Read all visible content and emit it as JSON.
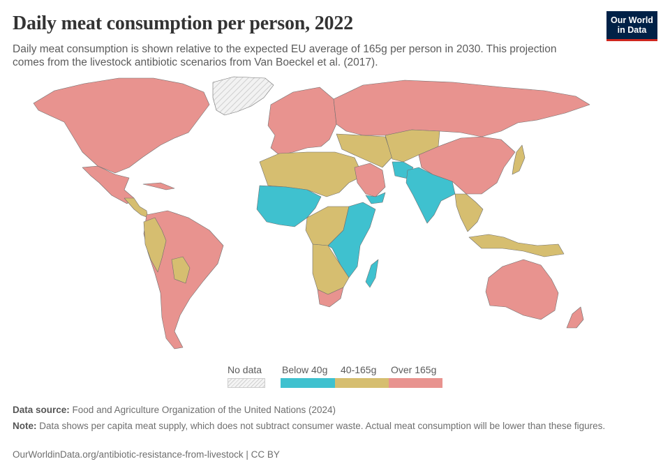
{
  "header": {
    "title": "Daily meat consumption per person, 2022",
    "subtitle": "Daily meat consumption is shown relative to the expected EU average of 165g per person in 2030. This projection comes from the livestock antibiotic scenarios from Van Boeckel et al. (2017)."
  },
  "logo": {
    "line1": "Our World",
    "line2": "in Data",
    "bg_color": "#002147",
    "accent_color": "#ce261e"
  },
  "colors": {
    "below_40g": "#3fc1cf",
    "between_40_165g": "#d6be70",
    "over_165g": "#e8938f",
    "no_data": "#e4e4e4",
    "ocean": "#ffffff",
    "border": "#6f6f6f"
  },
  "legend": {
    "no_data_label": "No data",
    "categories": [
      {
        "label": "Below 40g",
        "color": "#3fc1cf"
      },
      {
        "label": "40-165g",
        "color": "#d6be70"
      },
      {
        "label": "Over 165g",
        "color": "#e8938f"
      }
    ]
  },
  "footer": {
    "source_label": "Data source:",
    "source_text": "Food and Agriculture Organization of the United Nations (2024)",
    "note_label": "Note:",
    "note_text": "Data shows per capita meat supply, which does not subtract consumer waste. Actual meat consumption will be lower than these figures.",
    "url_text": "OurWorldinData.org/antibiotic-resistance-from-livestock | CC BY"
  },
  "map": {
    "regions": [
      {
        "name": "greenland",
        "category": "no_data"
      },
      {
        "name": "north-america",
        "category": "over_165g"
      },
      {
        "name": "mexico",
        "category": "over_165g"
      },
      {
        "name": "central-america",
        "category": "between_40_165g"
      },
      {
        "name": "caribbean",
        "category": "over_165g"
      },
      {
        "name": "south-america",
        "category": "over_165g"
      },
      {
        "name": "andean-countries",
        "category": "between_40_165g"
      },
      {
        "name": "bolivia",
        "category": "between_40_165g"
      },
      {
        "name": "europe",
        "category": "over_165g"
      },
      {
        "name": "russia",
        "category": "over_165g"
      },
      {
        "name": "north-africa",
        "category": "between_40_165g"
      },
      {
        "name": "west-africa",
        "category": "below_40g"
      },
      {
        "name": "central-africa",
        "category": "between_40_165g"
      },
      {
        "name": "east-africa",
        "category": "below_40g"
      },
      {
        "name": "southern-africa",
        "category": "between_40_165g"
      },
      {
        "name": "south-africa",
        "category": "over_165g"
      },
      {
        "name": "madagascar",
        "category": "below_40g"
      },
      {
        "name": "middle-east",
        "category": "between_40_165g"
      },
      {
        "name": "saudi-arabia",
        "category": "over_165g"
      },
      {
        "name": "yemen",
        "category": "below_40g"
      },
      {
        "name": "central-asia",
        "category": "between_40_165g"
      },
      {
        "name": "afghanistan",
        "category": "below_40g"
      },
      {
        "name": "india",
        "category": "below_40g"
      },
      {
        "name": "china",
        "category": "over_165g"
      },
      {
        "name": "japan",
        "category": "between_40_165g"
      },
      {
        "name": "southeast-asia",
        "category": "between_40_165g"
      },
      {
        "name": "indonesia",
        "category": "between_40_165g"
      },
      {
        "name": "australia",
        "category": "over_165g"
      },
      {
        "name": "new-zealand",
        "category": "over_165g"
      }
    ]
  }
}
